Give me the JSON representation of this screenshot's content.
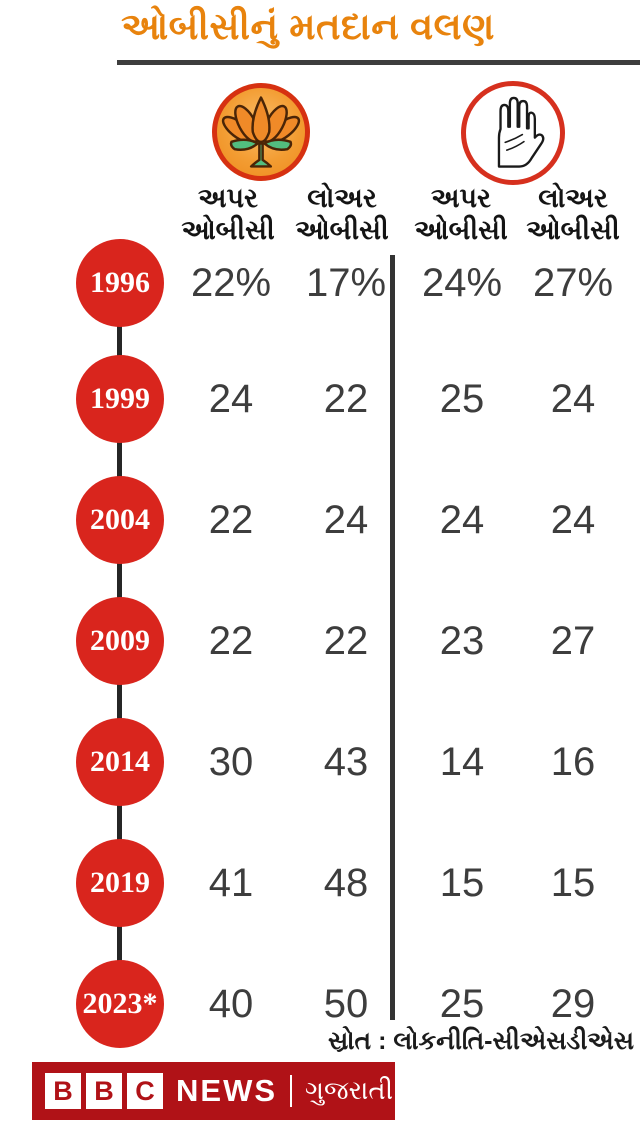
{
  "title": "ઓબીસીનું મતદાન વલણ",
  "parties": [
    {
      "name": "BJP",
      "icon": "bjp-lotus-icon"
    },
    {
      "name": "Congress",
      "icon": "congress-hand-icon"
    }
  ],
  "columns": [
    "અપર\nઓબીસી",
    "લોઅર\nઓબીસી",
    "અપર\nઓબીસી",
    "લોઅર\nઓબીસી"
  ],
  "rows": [
    {
      "year": "1996",
      "values": [
        "22%",
        "17%",
        "24%",
        "27%"
      ]
    },
    {
      "year": "1999",
      "values": [
        "24",
        "22",
        "25",
        "24"
      ]
    },
    {
      "year": "2004",
      "values": [
        "22",
        "24",
        "24",
        "24"
      ]
    },
    {
      "year": "2009",
      "values": [
        "22",
        "22",
        "23",
        "27"
      ]
    },
    {
      "year": "2014",
      "values": [
        "30",
        "43",
        "14",
        "16"
      ]
    },
    {
      "year": "2019",
      "values": [
        "41",
        "48",
        "15",
        "15"
      ]
    },
    {
      "year": "2023*",
      "values": [
        "40",
        "50",
        "25",
        "29"
      ]
    }
  ],
  "source": "સ્રોત : લોકનીતિ-સીએસડીએસ",
  "footer": {
    "bbc_letters": [
      "B",
      "B",
      "C"
    ],
    "news": "NEWS",
    "divider": "|",
    "language": "ગુજરાતી"
  },
  "colors": {
    "title_orange": "#E8830D",
    "year_circle_red": "#D9251D",
    "footer_red": "#B01217",
    "value_text": "#3d3d3d",
    "header_text": "#141414",
    "rule_dark": "#3d3d3d",
    "bjp_ring": "#D63111",
    "bjp_fill": "#F39D33",
    "lotus_orange": "#F08A28",
    "leaf_green": "#52BE7F",
    "congress_ring": "#D6301E"
  },
  "chart_data": {
    "type": "table",
    "title": "ઓબીસીનું મતદાન વલણ",
    "categories": [
      "1996",
      "1999",
      "2004",
      "2009",
      "2014",
      "2019",
      "2023*"
    ],
    "series": [
      {
        "name": "BJP અપર ઓબીસી",
        "values": [
          22,
          24,
          22,
          22,
          30,
          41,
          40
        ]
      },
      {
        "name": "BJP લોઅર ઓબીસી",
        "values": [
          17,
          22,
          24,
          22,
          43,
          48,
          50
        ]
      },
      {
        "name": "Congress અપર ઓબીસી",
        "values": [
          24,
          25,
          24,
          23,
          14,
          15,
          25
        ]
      },
      {
        "name": "Congress લોઅર ઓબીસી",
        "values": [
          27,
          24,
          24,
          27,
          16,
          15,
          29
        ]
      }
    ],
    "unit": "%",
    "source": "સ્રોત : લોકનીતિ-સીએસડીએસ",
    "legend_position": "top-icons",
    "grid": false
  }
}
